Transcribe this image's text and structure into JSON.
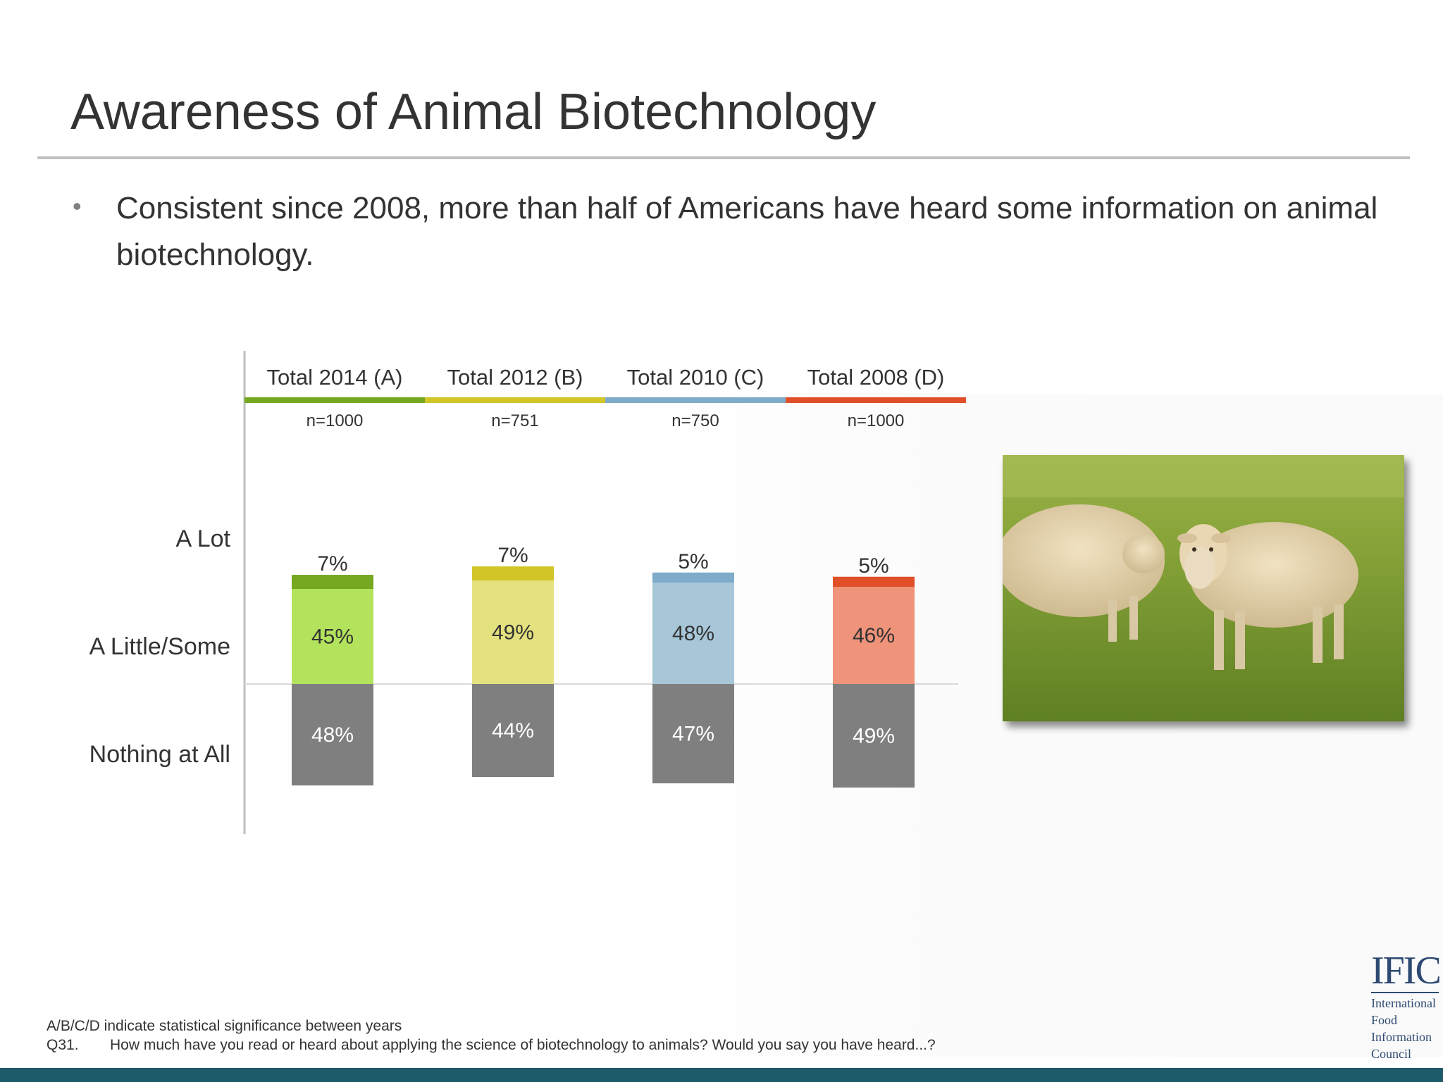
{
  "slide": {
    "title": "Awareness of Animal Biotechnology",
    "bullet": "Consistent since 2008, more than half of Americans have heard some information on animal biotechnology."
  },
  "chart_data": {
    "type": "bar",
    "stacked": true,
    "categories": [
      "Total 2014 (A)",
      "Total 2012 (B)",
      "Total 2010 (C)",
      "Total 2008 (D)"
    ],
    "sample_sizes": [
      "n=1000",
      "n=751",
      "n=750",
      "n=1000"
    ],
    "row_labels": [
      "A Lot",
      "A Little/Some",
      "Nothing at All"
    ],
    "series": [
      {
        "name": "A Lot",
        "values": [
          7,
          7,
          5,
          5
        ],
        "labels": [
          "7%",
          "7%",
          "5%",
          "5%"
        ]
      },
      {
        "name": "A Little/Some",
        "values": [
          45,
          49,
          48,
          46
        ],
        "labels": [
          "45%",
          "49%",
          "48%",
          "46%"
        ]
      },
      {
        "name": "Nothing at All",
        "values": [
          48,
          44,
          47,
          49
        ],
        "labels": [
          "48%",
          "44%",
          "47%",
          "49%"
        ]
      }
    ],
    "colors": {
      "dark": [
        "#75a820",
        "#d1c528",
        "#7eabca",
        "#e04f28"
      ],
      "light": [
        "#b3e25c",
        "#e4e27e",
        "#a7c7d9",
        "#ef937a"
      ],
      "nothing": "#7f7f80"
    },
    "baseline": "A Little/Some above, Nothing at All below"
  },
  "image": {
    "name": "sheep-photo"
  },
  "footnotes": {
    "significance": "A/B/C/D indicate statistical significance between years",
    "question_id": "Q31.",
    "question_text": "How much have you read or heard about applying the science of biotechnology to animals?  Would you say you have heard...?"
  },
  "logo": {
    "mark": "IFIC",
    "lines": [
      "International",
      "Food",
      "Information",
      "Council"
    ]
  }
}
